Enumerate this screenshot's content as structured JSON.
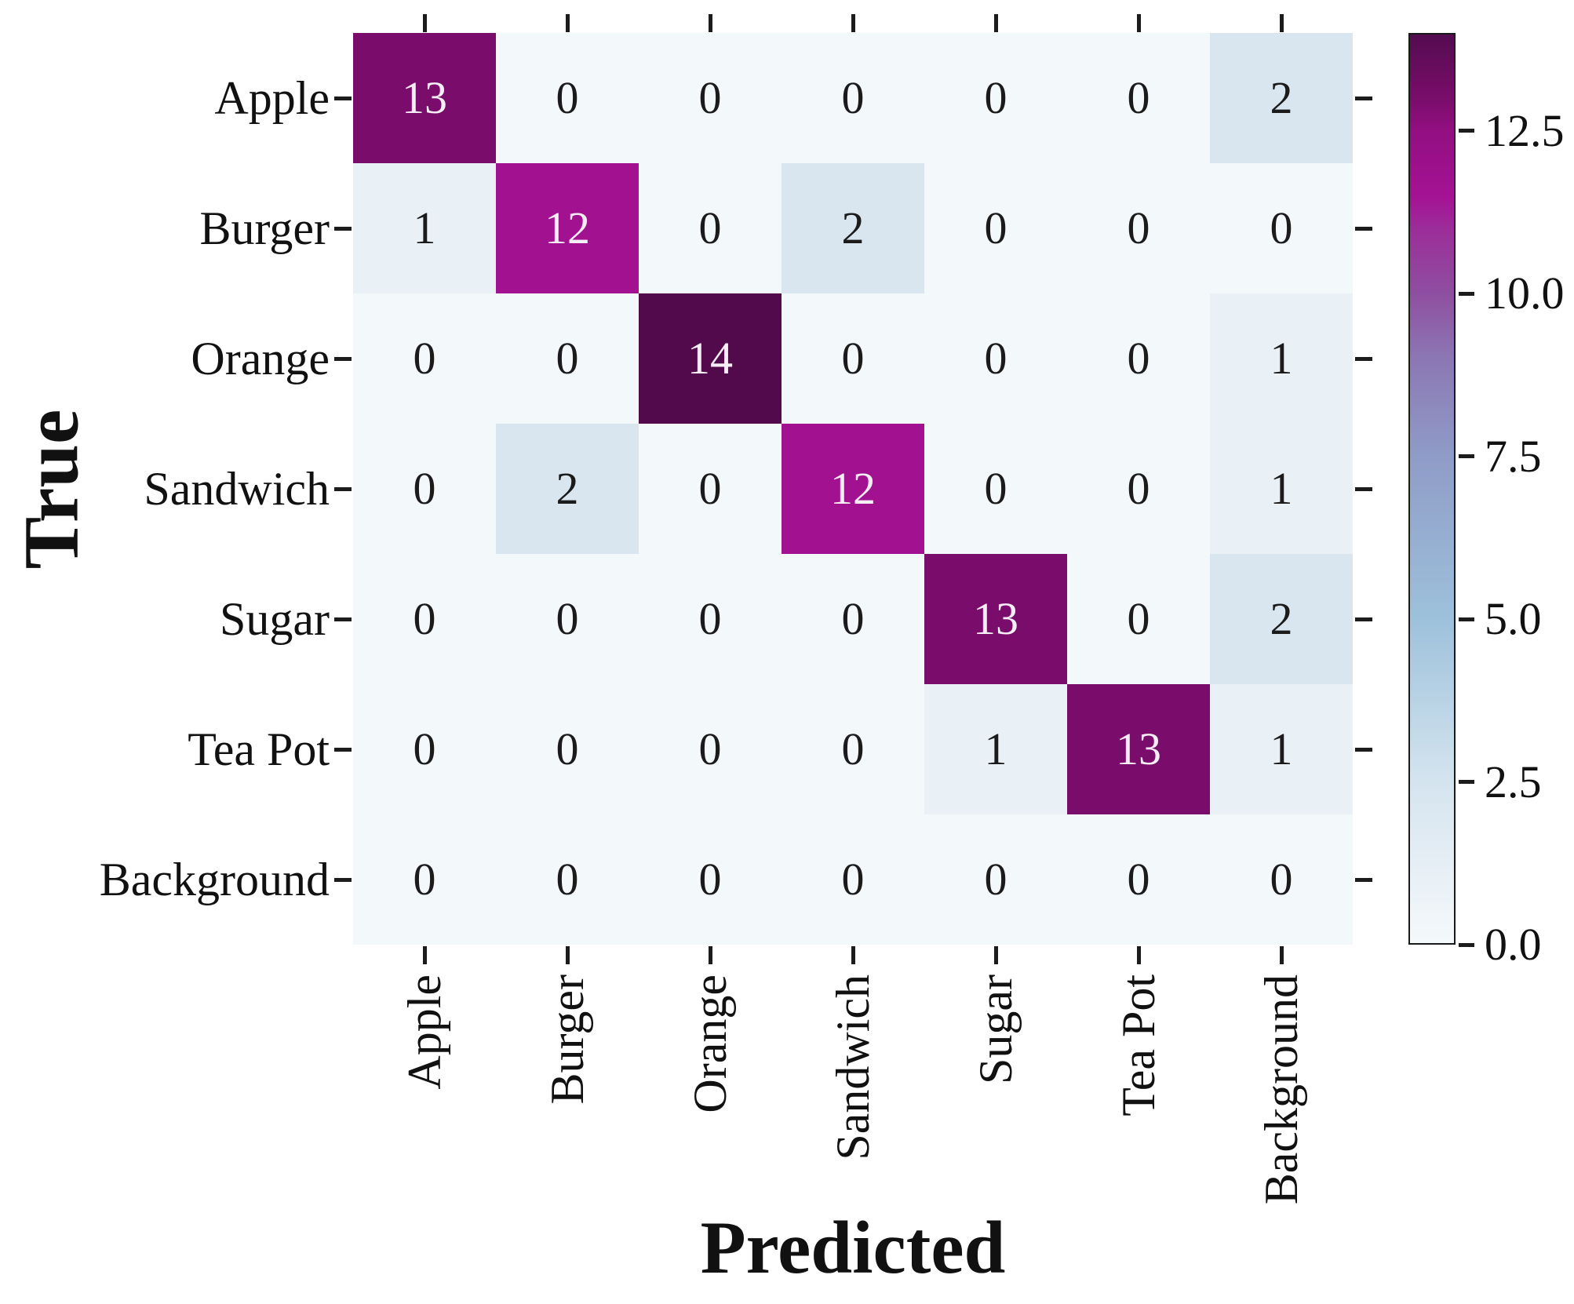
{
  "figure": {
    "background": "#ffffff"
  },
  "chart_data": {
    "type": "heatmap",
    "title": "",
    "xlabel": "Predicted",
    "ylabel": "True",
    "x_categories": [
      "Apple",
      "Burger",
      "Orange",
      "Sandwich",
      "Sugar",
      "Tea Pot",
      "Background"
    ],
    "y_categories": [
      "Apple",
      "Burger",
      "Orange",
      "Sandwich",
      "Sugar",
      "Tea Pot",
      "Background"
    ],
    "matrix": [
      [
        13,
        0,
        0,
        0,
        0,
        0,
        2
      ],
      [
        1,
        12,
        0,
        2,
        0,
        0,
        0
      ],
      [
        0,
        0,
        14,
        0,
        0,
        0,
        1
      ],
      [
        0,
        2,
        0,
        12,
        0,
        0,
        1
      ],
      [
        0,
        0,
        0,
        0,
        13,
        0,
        2
      ],
      [
        0,
        0,
        0,
        0,
        1,
        13,
        1
      ],
      [
        0,
        0,
        0,
        0,
        0,
        0,
        0
      ]
    ],
    "vmin": 0,
    "vmax": 14,
    "legend_position": "right",
    "grid": false,
    "colorbar": {
      "tick_values": [
        12.5,
        10.0,
        7.5,
        5.0,
        2.5,
        0.0
      ],
      "tick_labels": [
        "12.5",
        "10.0",
        "7.5",
        "5.0",
        "2.5",
        "0.0"
      ]
    },
    "colors": {
      "value_colors": {
        "0": "#f3f8fa",
        "1": "#e9f1f7",
        "2": "#d9e6f0",
        "12": "#a21190",
        "13": "#7a0c6c",
        "14": "#520a4d"
      },
      "white_text_threshold": 12,
      "cell_text_dark": "#1b1b1b",
      "cell_text_light": "#f5eef4",
      "tick_color": "#1c1c1c",
      "label_color": "#111111",
      "colorbar_border": "#1a1a1a",
      "gradient_stops": [
        {
          "v": 0,
          "color": "#f4f9fb"
        },
        {
          "v": 1.25,
          "color": "#e6eef5"
        },
        {
          "v": 2.5,
          "color": "#d4e4ef"
        },
        {
          "v": 5,
          "color": "#9dc1db"
        },
        {
          "v": 7.5,
          "color": "#8f9cc7"
        },
        {
          "v": 9,
          "color": "#8c77b4"
        },
        {
          "v": 10,
          "color": "#8e4fa0"
        },
        {
          "v": 11,
          "color": "#9c2d9a"
        },
        {
          "v": 11.5,
          "color": "#a41294"
        },
        {
          "v": 12.5,
          "color": "#930f82"
        },
        {
          "v": 13,
          "color": "#7a0d6b"
        },
        {
          "v": 14,
          "color": "#540b4f"
        }
      ]
    }
  }
}
